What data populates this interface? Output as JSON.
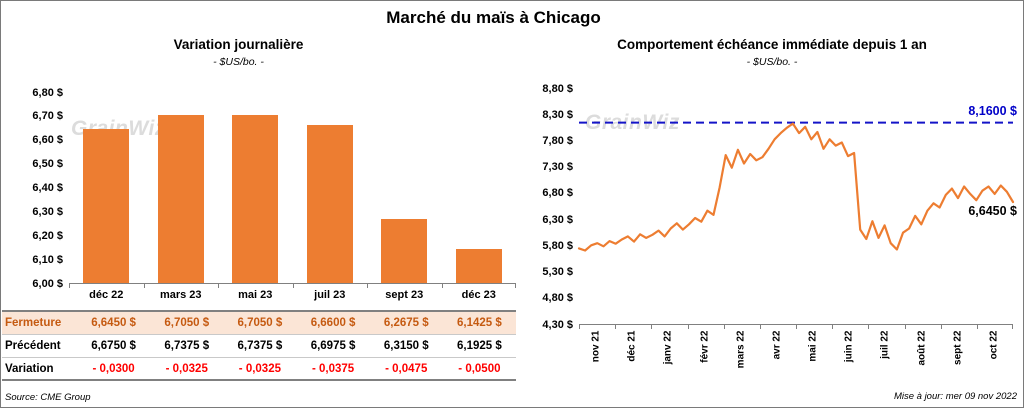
{
  "page": {
    "title": "Marché du maïs à Chicago",
    "source": "Source: CME Group",
    "updated": "Mise à jour: mer 09 nov 2022",
    "watermark": "GrainWiz"
  },
  "colors": {
    "bar_orange": "#ED7D31",
    "line_orange": "#ED7D31",
    "reference_blue": "#1414C8",
    "negative_red": "#FF0000",
    "fermeture_bg": "#FBE5D6",
    "fermeture_text": "#C55A11"
  },
  "chart_data": [
    {
      "type": "bar",
      "title": "Variation journalière",
      "subtitle": "- $US/bo. -",
      "categories": [
        "déc 22",
        "mars 23",
        "mai 23",
        "juil 23",
        "sept 23",
        "déc 23"
      ],
      "values": [
        6.645,
        6.705,
        6.705,
        6.66,
        6.2675,
        6.1425
      ],
      "ylim": [
        6.0,
        6.8
      ],
      "ytick_labels": [
        "6,80 $",
        "6,70 $",
        "6,60 $",
        "6,50 $",
        "6,40 $",
        "6,30 $",
        "6,20 $",
        "6,10 $",
        "6,00 $"
      ],
      "bar_color": "#ED7D31",
      "grid": false,
      "legend": "none"
    },
    {
      "type": "line",
      "title": "Comportement échéance immédiate depuis 1 an",
      "subtitle": "- $US/bo. -",
      "x_labels": [
        "nov 21",
        "déc 21",
        "janv 22",
        "févr 22",
        "mars 22",
        "avr 22",
        "mai 22",
        "juin 22",
        "juil 22",
        "août 22",
        "sept 22",
        "oct 22"
      ],
      "x_label_rotation": 90,
      "ylim": [
        4.3,
        8.8
      ],
      "ytick_labels": [
        "8,80 $",
        "8,30 $",
        "7,80 $",
        "7,30 $",
        "6,80 $",
        "6,30 $",
        "5,80 $",
        "5,30 $",
        "4,80 $",
        "4,30 $"
      ],
      "line_color": "#ED7D31",
      "values": [
        5.76,
        5.72,
        5.82,
        5.86,
        5.8,
        5.9,
        5.85,
        5.93,
        5.99,
        5.89,
        6.03,
        5.96,
        6.02,
        6.1,
        5.99,
        6.14,
        6.24,
        6.12,
        6.22,
        6.34,
        6.27,
        6.48,
        6.4,
        6.92,
        7.54,
        7.3,
        7.64,
        7.38,
        7.56,
        7.44,
        7.5,
        7.66,
        7.84,
        7.96,
        8.06,
        8.14,
        7.96,
        8.08,
        7.84,
        7.98,
        7.66,
        7.84,
        7.72,
        7.78,
        7.52,
        7.58,
        6.12,
        5.94,
        6.28,
        5.96,
        6.2,
        5.86,
        5.74,
        6.06,
        6.14,
        6.38,
        6.22,
        6.48,
        6.62,
        6.54,
        6.78,
        6.9,
        6.72,
        6.94,
        6.8,
        6.68,
        6.86,
        6.94,
        6.8,
        6.96,
        6.84,
        6.645
      ],
      "reference_line": {
        "value": 8.16,
        "label": "8,1600 $",
        "color": "#1414C8",
        "style": "dashed"
      },
      "last_value": 6.645,
      "last_value_label": "6,6450 $",
      "grid": false,
      "legend": "none"
    }
  ],
  "table": {
    "rows": [
      {
        "label": "Fermeture",
        "values": [
          "6,6450 $",
          "6,7050 $",
          "6,7050 $",
          "6,6600 $",
          "6,2675 $",
          "6,1425 $"
        ]
      },
      {
        "label": "Précédent",
        "values": [
          "6,6750 $",
          "6,7375 $",
          "6,7375 $",
          "6,6975 $",
          "6,3150 $",
          "6,1925 $"
        ]
      },
      {
        "label": "Variation",
        "values": [
          "- 0,0300",
          "- 0,0325",
          "- 0,0325",
          "- 0,0375",
          "- 0,0475",
          "- 0,0500"
        ]
      }
    ]
  }
}
